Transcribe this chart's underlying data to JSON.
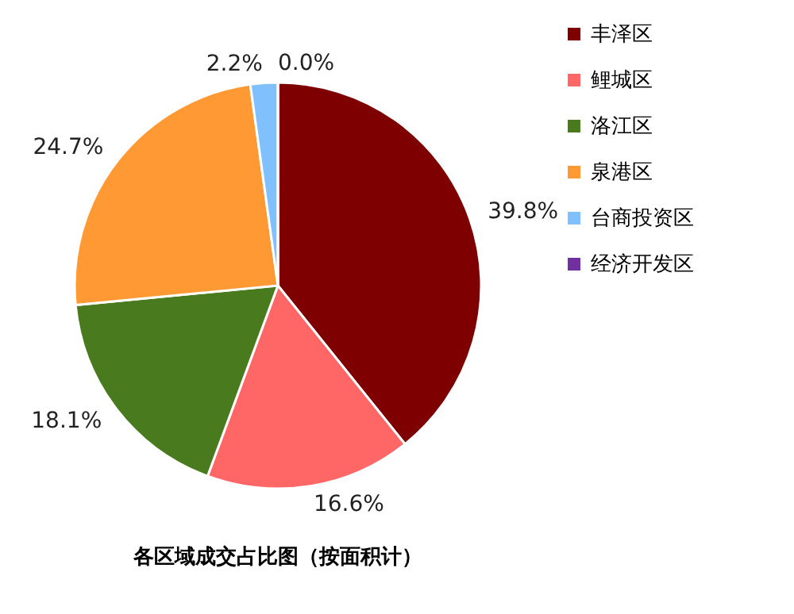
{
  "chart_data": {
    "type": "pie",
    "title": "各区域成交占比图（按面积计）",
    "categories": [
      "丰泽区",
      "鲤城区",
      "洛江区",
      "泉港区",
      "台商投资区",
      "经济开发区"
    ],
    "values": [
      39.8,
      16.6,
      18.1,
      24.7,
      2.2,
      0.0
    ],
    "colors": [
      "#7f0000",
      "#ff6666",
      "#4a7a1e",
      "#ff9933",
      "#80c0ff",
      "#7030a0"
    ],
    "value_labels": [
      "39.8%",
      "16.6%",
      "18.1%",
      "24.7%",
      "2.2%",
      "0.0%"
    ],
    "legend": "right"
  }
}
